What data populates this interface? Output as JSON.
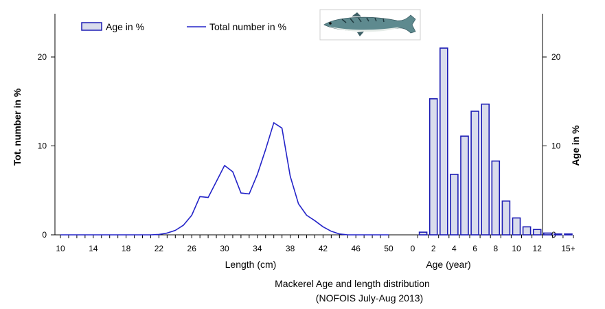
{
  "chart_data": {
    "type": "line+bar",
    "caption_line1": "Mackerel Age and length distribution",
    "caption_line2": "(NOFOIS July-Aug 2013)",
    "left_axis": {
      "label": "Tot. number  in %",
      "ylim": [
        0,
        25
      ],
      "ticks": [
        "0",
        "10",
        "20"
      ],
      "tick_values": [
        0,
        10,
        20
      ]
    },
    "right_axis": {
      "label": "Age in %",
      "ylim": [
        0,
        25
      ],
      "ticks": [
        "0",
        "10",
        "20"
      ],
      "tick_values": [
        0,
        10,
        20
      ]
    },
    "length_axis": {
      "label": "Length (cm)",
      "xlim": [
        10,
        50
      ],
      "ticks": [
        "10",
        "14",
        "18",
        "22",
        "26",
        "30",
        "34",
        "38",
        "42",
        "46",
        "50"
      ],
      "tick_values": [
        10,
        14,
        18,
        22,
        26,
        30,
        34,
        38,
        42,
        46,
        50
      ]
    },
    "age_axis": {
      "label": "Age (year)",
      "ticks": [
        "0",
        "2",
        "4",
        "6",
        "8",
        "10",
        "12",
        "15+"
      ],
      "tick_values": [
        0,
        2,
        4,
        6,
        8,
        10,
        12,
        15
      ]
    },
    "legend": [
      {
        "label": "Age in %",
        "kind": "bar"
      },
      {
        "label": "Total number in %",
        "kind": "line"
      }
    ],
    "colors": {
      "line": "#2323c8",
      "bar_stroke": "#1c1cb4",
      "bar_fill": "#d9dcec",
      "axis": "#000000"
    },
    "series": [
      {
        "name": "Total number in %",
        "kind": "line",
        "axis": "left",
        "x": [
          10,
          11,
          12,
          13,
          14,
          15,
          16,
          17,
          18,
          19,
          20,
          21,
          22,
          23,
          24,
          25,
          26,
          27,
          28,
          29,
          30,
          31,
          32,
          33,
          34,
          35,
          36,
          37,
          38,
          39,
          40,
          41,
          42,
          43,
          44,
          45,
          46,
          47,
          48,
          49,
          50
        ],
        "y": [
          0,
          0,
          0,
          0,
          0,
          0,
          0,
          0,
          0,
          0,
          0,
          0,
          0.05,
          0.2,
          0.5,
          1.1,
          2.2,
          4.3,
          4.2,
          6.0,
          7.8,
          7.1,
          4.7,
          4.6,
          6.8,
          9.6,
          12.6,
          12.0,
          6.6,
          3.5,
          2.2,
          1.6,
          0.9,
          0.4,
          0.1,
          0,
          0,
          0,
          0,
          0,
          0
        ]
      },
      {
        "name": "Age in %",
        "kind": "bar",
        "axis": "right",
        "x": [
          1,
          2,
          3,
          4,
          5,
          6,
          7,
          8,
          9,
          10,
          11,
          12,
          13,
          14,
          15
        ],
        "y": [
          0.3,
          15.3,
          21.0,
          6.8,
          11.1,
          13.9,
          14.7,
          8.3,
          3.8,
          1.9,
          0.9,
          0.6,
          0.2,
          0.1,
          0.1
        ]
      }
    ]
  }
}
